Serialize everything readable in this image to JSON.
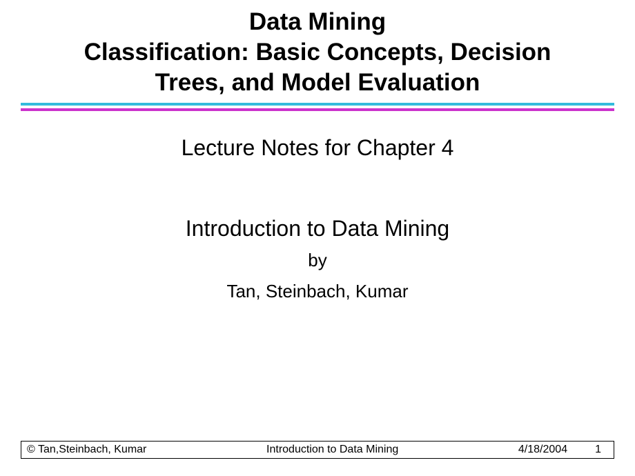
{
  "title": {
    "line1": "Data Mining",
    "line2": "Classification: Basic Concepts, Decision",
    "line3": "Trees, and Model Evaluation",
    "font_size": 35,
    "font_weight": "bold",
    "color": "#000000"
  },
  "divider": {
    "top_color": "#33bbdd",
    "bottom_color": "#cc33cc",
    "line_height": 4,
    "gap": 4
  },
  "body": {
    "lecture_notes": "Lecture Notes for Chapter 4",
    "intro": "Introduction to Data Mining",
    "by": "by",
    "authors": "Tan, Steinbach, Kumar",
    "large_font_size": 32,
    "small_font_size": 26,
    "color": "#000000"
  },
  "footer": {
    "copyright": "© Tan,Steinbach, Kumar",
    "title": "Introduction to Data Mining",
    "date": "4/18/2004",
    "page": "1",
    "font_size": 16,
    "border_color": "#000000"
  },
  "background_color": "#ffffff"
}
